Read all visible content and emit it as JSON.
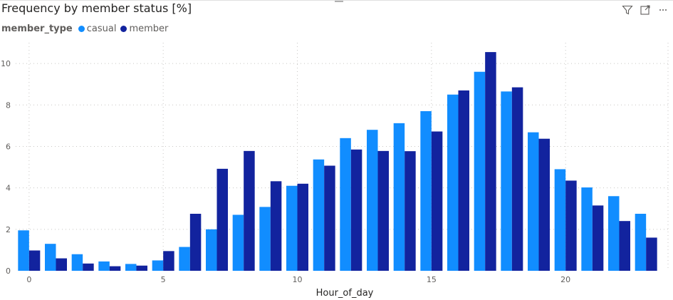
{
  "visual": {
    "title": "Frequency by member status [%]",
    "toolbar": {
      "filter_icon": "filter-icon",
      "focus_icon": "focus-mode-icon",
      "more_icon": "more-options-icon"
    }
  },
  "legend": {
    "title": "member_type",
    "items": [
      {
        "label": "casual",
        "color": "#118DFF"
      },
      {
        "label": "member",
        "color": "#12239E"
      }
    ]
  },
  "chart_data": {
    "type": "bar",
    "title": "Frequency by member status [%]",
    "xlabel": "Hour_of_day",
    "ylabel": "",
    "x": [
      0,
      1,
      2,
      3,
      4,
      5,
      6,
      7,
      8,
      9,
      10,
      11,
      12,
      13,
      14,
      15,
      16,
      17,
      18,
      19,
      20,
      21,
      22,
      23
    ],
    "x_ticks": [
      0,
      5,
      10,
      15,
      20
    ],
    "y_ticks": [
      0,
      2,
      4,
      6,
      8,
      10
    ],
    "ylim": [
      0,
      11
    ],
    "grid": true,
    "legend_position": "top-left",
    "series": [
      {
        "name": "casual",
        "color": "#118DFF",
        "values": [
          1.95,
          1.3,
          0.8,
          0.45,
          0.33,
          0.5,
          1.15,
          2.0,
          2.7,
          3.08,
          4.1,
          5.37,
          6.4,
          6.8,
          7.12,
          7.7,
          8.5,
          9.6,
          8.65,
          6.68,
          4.9,
          4.02,
          3.6,
          2.75
        ]
      },
      {
        "name": "member",
        "color": "#12239E",
        "values": [
          0.98,
          0.6,
          0.35,
          0.22,
          0.25,
          0.95,
          2.75,
          4.92,
          5.78,
          4.32,
          4.2,
          5.07,
          5.85,
          5.78,
          5.77,
          6.72,
          8.7,
          10.55,
          8.85,
          6.37,
          4.35,
          3.15,
          2.4,
          1.6
        ]
      }
    ]
  }
}
